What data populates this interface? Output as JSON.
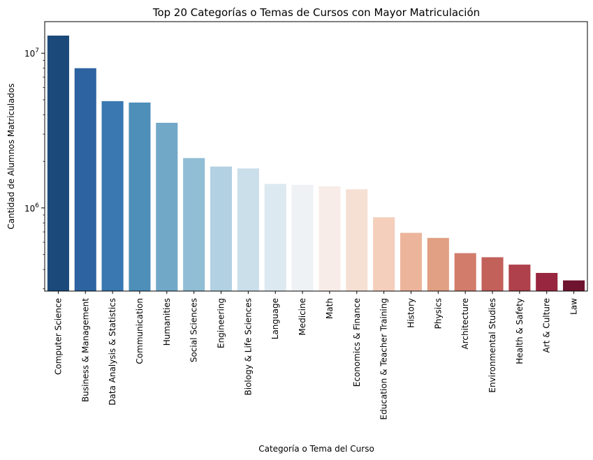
{
  "chart_data": {
    "type": "bar",
    "title": "Top 20 Categorías o Temas de Cursos con Mayor Matriculación",
    "xlabel": "Categoría o Tema del Curso",
    "ylabel": "Cantidad de Alumnos Matriculados",
    "yscale": "log",
    "ylim": [
      290000,
      16000000
    ],
    "yticks": [
      {
        "value": 1000000,
        "base": "10",
        "exp": "6"
      },
      {
        "value": 10000000,
        "base": "10",
        "exp": "7"
      }
    ],
    "grid": false,
    "categories": [
      "Computer Science",
      "Business & Management",
      "Data Analysis & Statistics",
      "Communication",
      "Humanities",
      "Social Sciences",
      "Engineering",
      "Biology & Life Sciences",
      "Language",
      "Medicine",
      "Math",
      "Economics & Finance",
      "Education & Teacher Training",
      "History",
      "Physics",
      "Architecture",
      "Environmental Studies",
      "Health & Safety",
      "Art & Culture",
      "Law"
    ],
    "values": [
      13000000,
      8000000,
      4900000,
      4800000,
      3550000,
      2100000,
      1850000,
      1800000,
      1430000,
      1410000,
      1380000,
      1320000,
      870000,
      690000,
      640000,
      510000,
      480000,
      430000,
      380000,
      340000
    ],
    "colors": [
      "#1b4a7a",
      "#2d63a0",
      "#3978b1",
      "#4d8fb9",
      "#71a8c8",
      "#91bdd5",
      "#b2d1e2",
      "#cadfea",
      "#dde9f0",
      "#eff2f4",
      "#f8ece8",
      "#f6e0d4",
      "#f4cfbb",
      "#ecb59b",
      "#e1a083",
      "#d27c6b",
      "#c2605a",
      "#ae414b",
      "#98263e",
      "#6f1430"
    ]
  }
}
